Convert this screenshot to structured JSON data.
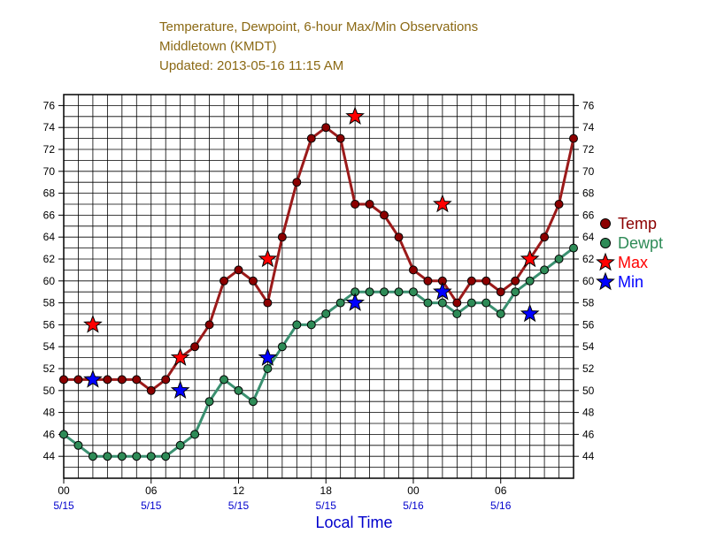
{
  "chart_data": {
    "type": "line",
    "title": "Temperature, Dewpoint, 6-hour Max/Min Observations",
    "subtitle": "Middletown (KMDT)",
    "updated": "Updated: 2013-05-16 11:15 AM",
    "xlabel": "Local Time",
    "ylim": [
      42,
      77
    ],
    "xlim_hours": [
      0,
      35
    ],
    "grid": true,
    "legend_position": "right",
    "y_ticks": [
      44,
      46,
      48,
      50,
      52,
      54,
      56,
      58,
      60,
      62,
      64,
      66,
      68,
      70,
      72,
      74,
      76
    ],
    "x_ticks": [
      {
        "hour": 0,
        "label": "00",
        "date": "5/15"
      },
      {
        "hour": 6,
        "label": "06",
        "date": "5/15"
      },
      {
        "hour": 12,
        "label": "12",
        "date": "5/15"
      },
      {
        "hour": 18,
        "label": "18",
        "date": "5/15"
      },
      {
        "hour": 24,
        "label": "00",
        "date": "5/16"
      },
      {
        "hour": 30,
        "label": "06",
        "date": "5/16"
      }
    ],
    "series": [
      {
        "name": "Temp",
        "color": "#8b0000",
        "line_color": "#9b1a1a",
        "marker": "circle",
        "x": [
          0,
          1,
          2,
          3,
          4,
          5,
          6,
          7,
          8,
          9,
          10,
          11,
          12,
          13,
          14,
          15,
          16,
          17,
          18,
          19,
          20,
          21,
          22,
          23,
          24,
          25,
          26,
          27,
          28,
          29,
          30,
          31,
          32,
          33,
          34,
          35
        ],
        "y": [
          51,
          51,
          51,
          51,
          51,
          51,
          50,
          51,
          53,
          54,
          56,
          60,
          61,
          60,
          58,
          64,
          69,
          73,
          74,
          73,
          67,
          67,
          66,
          64,
          61,
          60,
          60,
          58,
          60,
          60,
          59,
          60,
          62,
          64,
          67,
          73
        ]
      },
      {
        "name": "Dewpt",
        "color": "#2e8b57",
        "line_color": "#3a9070",
        "marker": "circle",
        "x": [
          0,
          1,
          2,
          3,
          4,
          5,
          6,
          7,
          8,
          9,
          10,
          11,
          12,
          13,
          14,
          15,
          16,
          17,
          18,
          19,
          20,
          21,
          22,
          23,
          24,
          25,
          26,
          27,
          28,
          29,
          30,
          31,
          32,
          33,
          34,
          35
        ],
        "y": [
          46,
          45,
          44,
          44,
          44,
          44,
          44,
          44,
          45,
          46,
          49,
          51,
          50,
          49,
          52,
          54,
          56,
          56,
          57,
          58,
          59,
          59,
          59,
          59,
          59,
          58,
          58,
          57,
          58,
          58,
          57,
          59,
          60,
          61,
          62,
          63
        ]
      },
      {
        "name": "Max",
        "color": "#ff0000",
        "marker": "star",
        "x": [
          2,
          8,
          14,
          20,
          26,
          32
        ],
        "y": [
          56,
          53,
          62,
          75,
          67,
          62
        ]
      },
      {
        "name": "Min",
        "color": "#0000ff",
        "marker": "star",
        "x": [
          2,
          8,
          14,
          20,
          26,
          32
        ],
        "y": [
          51,
          50,
          53,
          58,
          59,
          57
        ]
      }
    ]
  }
}
